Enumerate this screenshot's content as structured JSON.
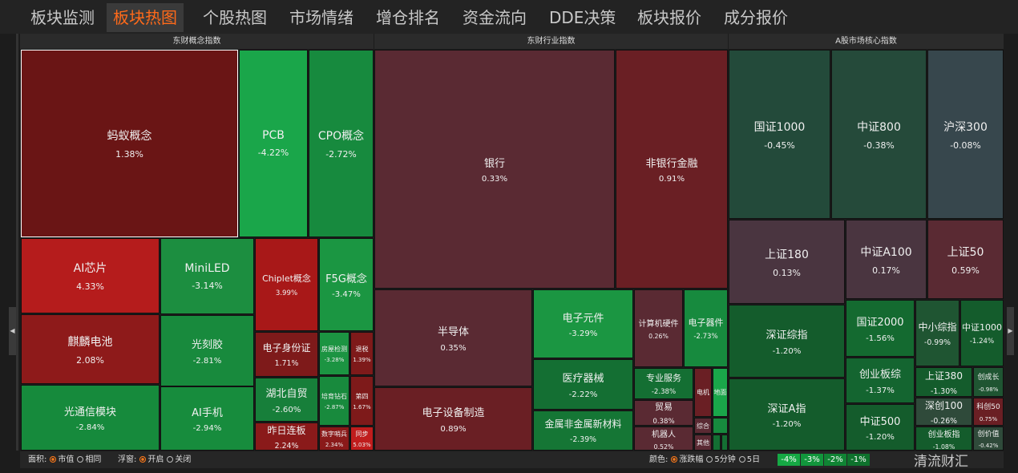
{
  "tabs": [
    "板块监测",
    "板块热图",
    "个股热图",
    "市场情绪",
    "增仓排名",
    "资金流向",
    "DDE决策",
    "板块报价",
    "成分报价"
  ],
  "active_tab": 1,
  "panels": [
    {
      "title": "东财概念指数",
      "tiles": [
        {
          "label": "蚂蚁概念",
          "change": "1.38%"
        },
        {
          "label": "PCB",
          "change": "-4.22%"
        },
        {
          "label": "CPO概念",
          "change": "-2.72%"
        },
        {
          "label": "AI芯片",
          "change": "4.33%"
        },
        {
          "label": "MiniLED",
          "change": "-3.14%"
        },
        {
          "label": "Chiplet概念",
          "change": "3.99%"
        },
        {
          "label": "F5G概念",
          "change": "-3.47%"
        },
        {
          "label": "麒麟电池",
          "change": "2.08%"
        },
        {
          "label": "光刻胶",
          "change": "-2.81%"
        },
        {
          "label": "电子身份证",
          "change": "1.71%"
        },
        {
          "label": "房屋检测",
          "change": "-3.28%"
        },
        {
          "label": "退税",
          "change": "1.39%"
        },
        {
          "label": "湖北自贸",
          "change": "-2.60%"
        },
        {
          "label": "培育钻石",
          "change": "-2.87%"
        },
        {
          "label": "第四",
          "change": "1.67%"
        },
        {
          "label": "光通信模块",
          "change": "-2.84%"
        },
        {
          "label": "AI手机",
          "change": "-2.94%"
        },
        {
          "label": "昨日连板",
          "change": "2.24%"
        },
        {
          "label": "数字哨兵",
          "change": "2.34%"
        },
        {
          "label": "同步",
          "change": "5.03%"
        }
      ]
    },
    {
      "title": "东财行业指数",
      "tiles": [
        {
          "label": "银行",
          "change": "0.33%"
        },
        {
          "label": "非银行金融",
          "change": "0.91%"
        },
        {
          "label": "半导体",
          "change": "0.35%"
        },
        {
          "label": "电子设备制造",
          "change": "0.89%"
        },
        {
          "label": "电子元件",
          "change": "-3.29%"
        },
        {
          "label": "医疗器械",
          "change": "-2.22%"
        },
        {
          "label": "金属非金属新材料",
          "change": "-2.39%"
        },
        {
          "label": "计算机硬件",
          "change": "0.26%"
        },
        {
          "label": "电子器件",
          "change": "-2.73%"
        },
        {
          "label": "专业服务",
          "change": "-2.38%"
        },
        {
          "label": "贸易",
          "change": "0.38%"
        },
        {
          "label": "机器人",
          "change": "0.52%"
        },
        {
          "label": "电机"
        },
        {
          "label": "地面"
        },
        {
          "label": "综合"
        },
        {
          "label": "其他"
        }
      ]
    },
    {
      "title": "A股市场核心指数",
      "tiles": [
        {
          "label": "国证1000",
          "change": "-0.45%"
        },
        {
          "label": "中证800",
          "change": "-0.38%"
        },
        {
          "label": "沪深300",
          "change": "-0.08%"
        },
        {
          "label": "上证180",
          "change": "0.13%"
        },
        {
          "label": "中证A100",
          "change": "0.17%"
        },
        {
          "label": "上证50",
          "change": "0.59%"
        },
        {
          "label": "深证综指",
          "change": "-1.20%"
        },
        {
          "label": "深证A指",
          "change": "-1.20%"
        },
        {
          "label": "国证2000",
          "change": "-1.56%"
        },
        {
          "label": "创业板综",
          "change": "-1.37%"
        },
        {
          "label": "中证500",
          "change": "-1.20%"
        },
        {
          "label": "中小综指",
          "change": "-0.99%"
        },
        {
          "label": "中证1000",
          "change": "-1.24%"
        },
        {
          "label": "上证380",
          "change": "-1.30%"
        },
        {
          "label": "创成长",
          "change": "-0.98%"
        },
        {
          "label": "深创100",
          "change": "-0.26%"
        },
        {
          "label": "科创50",
          "change": "0.75%"
        },
        {
          "label": "创业板指",
          "change": "-1.08%"
        },
        {
          "label": "创价值",
          "change": "-0.42%"
        }
      ]
    }
  ],
  "controls": [
    {
      "label": "面积:",
      "options": [
        "市值",
        "相同"
      ]
    },
    {
      "label": "浮窗:",
      "options": [
        "开启",
        "关闭"
      ]
    },
    {
      "label": "颜色:",
      "options": [
        "涨跌幅",
        "5分钟",
        "5日"
      ]
    }
  ],
  "scale": [
    "-4%",
    "-3%",
    "-2%",
    "-1%"
  ],
  "watermark": "清流财汇"
}
